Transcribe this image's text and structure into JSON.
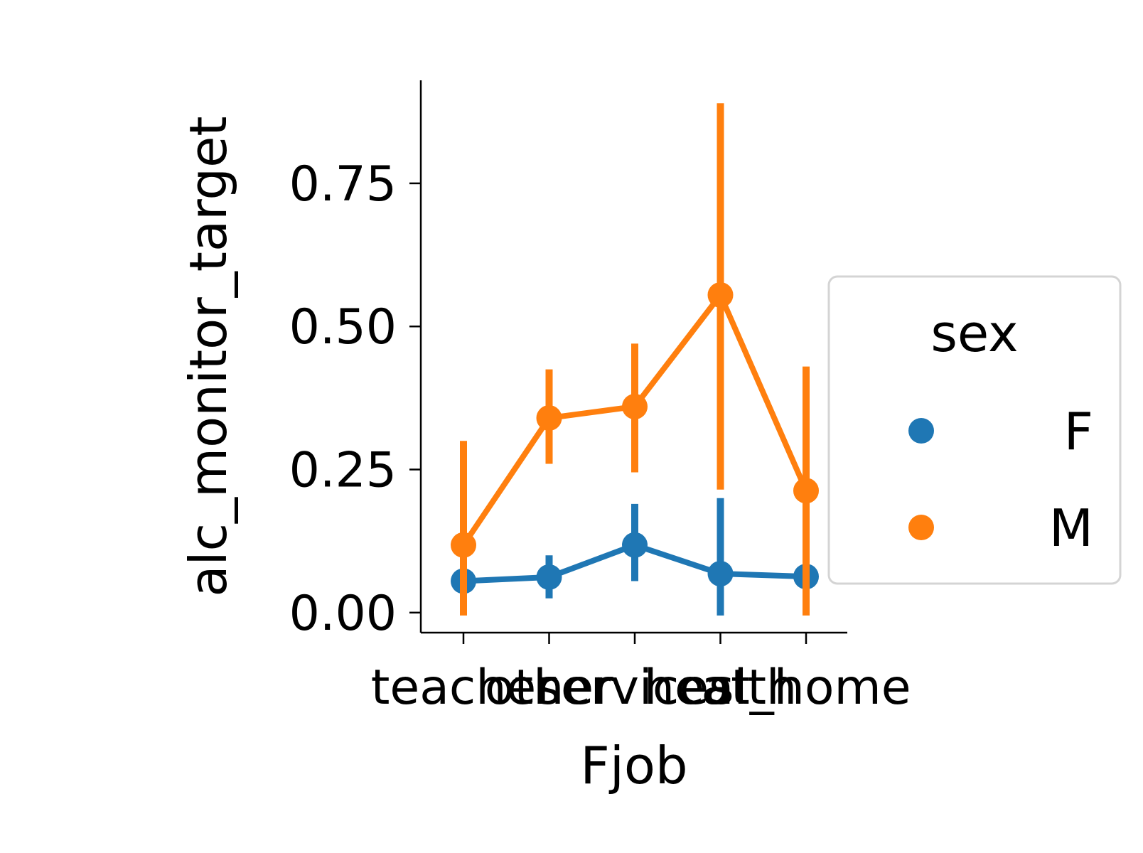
{
  "chart_data": {
    "type": "line",
    "xlabel": "Fjob",
    "ylabel": "alc_monitor_target",
    "categories": [
      "teacher",
      "other",
      "services",
      "health",
      "at_home"
    ],
    "ylim": [
      -0.035,
      0.93
    ],
    "yticks": [
      0.0,
      0.25,
      0.5,
      0.75
    ],
    "ytick_labels": [
      "0.00",
      "0.25",
      "0.50",
      "0.75"
    ],
    "grid": false,
    "legend": {
      "title": "sex",
      "placement": "right"
    },
    "series": [
      {
        "name": "F",
        "color": "#1f77b4",
        "values": [
          0.055,
          0.062,
          0.118,
          0.068,
          0.063
        ],
        "ci_low": [
          0.03,
          0.025,
          0.055,
          -0.005,
          0.03
        ],
        "ci_high": [
          0.08,
          0.1,
          0.19,
          0.2,
          0.095
        ]
      },
      {
        "name": "M",
        "color": "#ff7f0e",
        "values": [
          0.118,
          0.34,
          0.36,
          0.555,
          0.213
        ],
        "ci_low": [
          -0.005,
          0.26,
          0.245,
          0.215,
          -0.005
        ],
        "ci_high": [
          0.3,
          0.425,
          0.47,
          0.89,
          0.43
        ]
      }
    ]
  }
}
